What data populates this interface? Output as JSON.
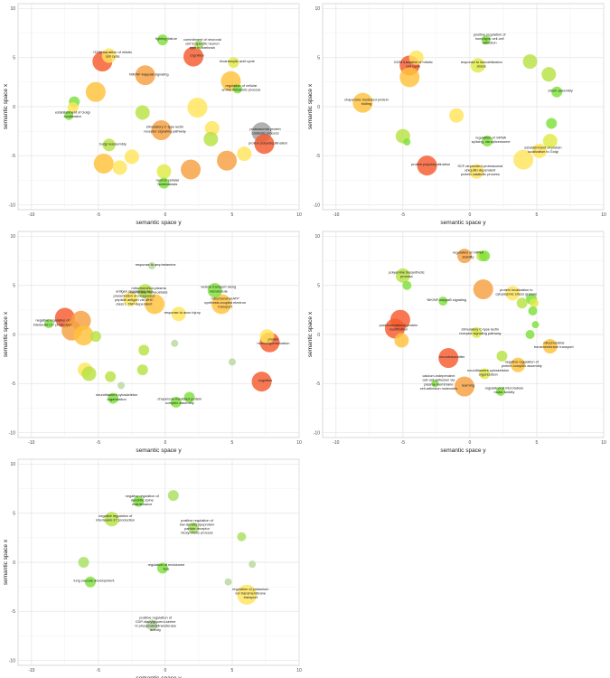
{
  "axes": {
    "xlabel": "semantic space y",
    "ylabel": "semantic space x",
    "xlim": [
      -11,
      10
    ],
    "ylim": [
      -10.5,
      10.5
    ],
    "xticks": [
      -10,
      -5,
      0,
      5,
      10
    ],
    "yticks": [
      -10,
      -5,
      0,
      5,
      10
    ],
    "grid": true
  },
  "chart_data": [
    {
      "type": "scatter",
      "title": "",
      "xlabel": "semantic space y",
      "ylabel": "semantic space x",
      "xlim": [
        -11,
        10
      ],
      "ylim": [
        -10.5,
        10.5
      ],
      "grid": true,
      "points": [
        {
          "x": -0.2,
          "y": 6.8,
          "size": 6,
          "color": "#7ee03a",
          "label": "fighting failure"
        },
        {
          "x": 2.5,
          "y": 6.3,
          "size": 5,
          "color": "#a8e060",
          "label": "commitment of neuronal cell to specific neuron type in forebrain"
        },
        {
          "x": 2.1,
          "y": 5.1,
          "size": 11,
          "color": "#f55a2d",
          "label": "cognition"
        },
        {
          "x": -4.2,
          "y": 5.2,
          "size": 8,
          "color": "#ffe45a",
          "label": "G2/M transition of mitotic cell cycle"
        },
        {
          "x": -4.7,
          "y": 4.6,
          "size": 11,
          "color": "#f55a2d",
          "label": ""
        },
        {
          "x": -1.5,
          "y": 3.2,
          "size": 11,
          "color": "#f7a040",
          "label": "NIK/NF-kappaB signaling"
        },
        {
          "x": 5.1,
          "y": 4.5,
          "size": 6,
          "color": "#e0ea46",
          "label": "tricarboxylic acid cycle"
        },
        {
          "x": 4.9,
          "y": 2.6,
          "size": 11,
          "color": "#ffc13a",
          "label": ""
        },
        {
          "x": 5.4,
          "y": 1.8,
          "size": 5,
          "color": "#7ee03a",
          "label": "regulation of cellular amine metabolic process"
        },
        {
          "x": -5.2,
          "y": 1.5,
          "size": 11,
          "color": "#ffc13a",
          "label": ""
        },
        {
          "x": -6.8,
          "y": 0.5,
          "size": 6,
          "color": "#7ee03a",
          "label": ""
        },
        {
          "x": -6.9,
          "y": -0.1,
          "size": 6,
          "color": "#ffe45a",
          "label": ""
        },
        {
          "x": -7.2,
          "y": -0.9,
          "size": 5,
          "color": "#7ee03a",
          "label": "establishment of Golgi localization"
        },
        {
          "x": -1.7,
          "y": -0.6,
          "size": 8,
          "color": "#b8e244",
          "label": ""
        },
        {
          "x": 2.4,
          "y": -0.1,
          "size": 11,
          "color": "#ffe45a",
          "label": ""
        },
        {
          "x": 7.2,
          "y": -2.6,
          "size": 11,
          "color": "#a0a0a0",
          "label": "proteasomal protein catabolic process"
        },
        {
          "x": 7.4,
          "y": -3.8,
          "size": 11,
          "color": "#f55a2d",
          "label": "protein polyubiquitination"
        },
        {
          "x": -0.3,
          "y": -2.4,
          "size": 11,
          "color": "#f7a040",
          "label": "stimulatory C-type lectin receptor signaling pathway"
        },
        {
          "x": 3.5,
          "y": -2.2,
          "size": 8,
          "color": "#ffe45a",
          "label": ""
        },
        {
          "x": 3.4,
          "y": -3.3,
          "size": 8,
          "color": "#b8e244",
          "label": ""
        },
        {
          "x": -4.2,
          "y": -3.9,
          "size": 7,
          "color": "#b8e244",
          "label": "Golgi reassembly"
        },
        {
          "x": -2.5,
          "y": -5.1,
          "size": 8,
          "color": "#ffe45a",
          "label": ""
        },
        {
          "x": -3.4,
          "y": -6.2,
          "size": 8,
          "color": "#ffe45a",
          "label": ""
        },
        {
          "x": -4.6,
          "y": -5.8,
          "size": 11,
          "color": "#ffc13a",
          "label": ""
        },
        {
          "x": -0.1,
          "y": -6.6,
          "size": 8,
          "color": "#e0ea46",
          "label": ""
        },
        {
          "x": 1.9,
          "y": -6.4,
          "size": 11,
          "color": "#f7a040",
          "label": ""
        },
        {
          "x": 4.6,
          "y": -5.5,
          "size": 11,
          "color": "#f7a040",
          "label": ""
        },
        {
          "x": 5.9,
          "y": -4.8,
          "size": 8,
          "color": "#ffe45a",
          "label": ""
        },
        {
          "x": -0.1,
          "y": -7.8,
          "size": 6,
          "color": "#7ee03a",
          "label": "neuron cellular homeostasis"
        }
      ]
    },
    {
      "type": "scatter",
      "title": "",
      "xlabel": "semantic space y",
      "ylabel": "semantic space x",
      "xlim": [
        -11,
        10
      ],
      "ylim": [
        -10.5,
        10.5
      ],
      "grid": true,
      "points": [
        {
          "x": 1.2,
          "y": 6.8,
          "size": 5,
          "color": "#7ee03a",
          "label": "positive regulation of homotypic cell-cell adhesion"
        },
        {
          "x": -4.0,
          "y": 5.0,
          "size": 8,
          "color": "#ffe45a",
          "label": ""
        },
        {
          "x": -4.5,
          "y": 4.2,
          "size": 11,
          "color": "#f55a2d",
          "label": "G2/M transition of mitotic cell cycle"
        },
        {
          "x": -4.5,
          "y": 3.0,
          "size": 11,
          "color": "#ffc13a",
          "label": ""
        },
        {
          "x": 0.6,
          "y": 4.2,
          "size": 8,
          "color": "#e0ea46",
          "label": "response to immobilization stress"
        },
        {
          "x": 4.5,
          "y": 4.6,
          "size": 8,
          "color": "#b8e244",
          "label": ""
        },
        {
          "x": 5.9,
          "y": 3.3,
          "size": 8,
          "color": "#b8e244",
          "label": ""
        },
        {
          "x": 6.5,
          "y": 1.5,
          "size": 6,
          "color": "#7ee03a",
          "label": "cilium assembly"
        },
        {
          "x": -8.0,
          "y": 0.4,
          "size": 11,
          "color": "#ffc13a",
          "label": "chaperone-mediated protein folding"
        },
        {
          "x": -1.0,
          "y": -0.9,
          "size": 8,
          "color": "#ffe45a",
          "label": ""
        },
        {
          "x": 6.1,
          "y": -1.7,
          "size": 6,
          "color": "#7ee03a",
          "label": ""
        },
        {
          "x": 6.0,
          "y": -3.5,
          "size": 8,
          "color": "#e0ea46",
          "label": ""
        },
        {
          "x": -5.0,
          "y": -3.0,
          "size": 8,
          "color": "#b8e244",
          "label": ""
        },
        {
          "x": -4.7,
          "y": -3.6,
          "size": 4,
          "color": "#7ee03a",
          "label": ""
        },
        {
          "x": 1.3,
          "y": -3.5,
          "size": 6,
          "color": "#7ee03a",
          "label": "regulation of mRNA splicing, via spliceosome"
        },
        {
          "x": 5.2,
          "y": -4.5,
          "size": 8,
          "color": "#ffe45a",
          "label": "establishment of protein localization to Golgi"
        },
        {
          "x": -3.2,
          "y": -6.0,
          "size": 11,
          "color": "#f55a2d",
          "label": "protein polyubiquitination"
        },
        {
          "x": 4.0,
          "y": -5.4,
          "size": 11,
          "color": "#ffe45a",
          "label": ""
        },
        {
          "x": 0.5,
          "y": -6.6,
          "size": 8,
          "color": "#ffe45a",
          "label": "SCF-dependent proteasomal ubiquitin-dependent protein catabolic process"
        }
      ]
    },
    {
      "type": "scatter",
      "title": "",
      "xlabel": "semantic space y",
      "ylabel": "semantic space x",
      "xlim": [
        -11,
        10
      ],
      "ylim": [
        -10.5,
        10.5
      ],
      "grid": true,
      "points": [
        {
          "x": -1.0,
          "y": 7.0,
          "size": 4,
          "color": "#b8d8a0",
          "label": "response to amphetamine"
        },
        {
          "x": -2.6,
          "y": 3.6,
          "size": 8,
          "color": "#ffe45a",
          "label": "antigen processing and presentation of exogenous peptide antigen via MHC class I, TAP-dependent"
        },
        {
          "x": -1.5,
          "y": 4.4,
          "size": 8,
          "color": "#b8e244",
          "label": "mitochondrion-plasma membrane homeostasis"
        },
        {
          "x": -0.8,
          "y": 3.1,
          "size": 11,
          "color": "#ffc13a",
          "label": ""
        },
        {
          "x": 3.7,
          "y": 4.5,
          "size": 8,
          "color": "#7ee03a",
          "label": "vesicle transport along microtubule"
        },
        {
          "x": 4.2,
          "y": 3.1,
          "size": 11,
          "color": "#ffc13a",
          "label": "mitochondrial ATP synthesis coupled electron transport"
        },
        {
          "x": 1.0,
          "y": 2.1,
          "size": 8,
          "color": "#ffe45a",
          "label": "response to axon injury"
        },
        {
          "x": -7.5,
          "y": 1.7,
          "size": 11,
          "color": "#f55a2d",
          "label": ""
        },
        {
          "x": -6.3,
          "y": 1.4,
          "size": 11,
          "color": "#f7a040",
          "label": ""
        },
        {
          "x": -7.0,
          "y": 0.4,
          "size": 11,
          "color": "#f7a040",
          "label": ""
        },
        {
          "x": -6.1,
          "y": -0.1,
          "size": 11,
          "color": "#ffc13a",
          "label": ""
        },
        {
          "x": -8.7,
          "y": 1.1,
          "size": 5,
          "color": "#7ee03a",
          "label": "negative regulation of interleukin-17 production"
        },
        {
          "x": -5.2,
          "y": -0.2,
          "size": 6,
          "color": "#b8e244",
          "label": ""
        },
        {
          "x": 7.6,
          "y": -0.2,
          "size": 8,
          "color": "#ffe45a",
          "label": ""
        },
        {
          "x": 7.8,
          "y": -0.8,
          "size": 11,
          "color": "#f55a2d",
          "label": "protein homooligomerization"
        },
        {
          "x": 0.7,
          "y": -0.9,
          "size": 4,
          "color": "#b8d8a0",
          "label": ""
        },
        {
          "x": -1.6,
          "y": -1.6,
          "size": 6,
          "color": "#b8e244",
          "label": ""
        },
        {
          "x": -6.0,
          "y": -3.6,
          "size": 8,
          "color": "#ffe45a",
          "label": ""
        },
        {
          "x": -5.7,
          "y": -4.0,
          "size": 8,
          "color": "#b8e244",
          "label": ""
        },
        {
          "x": -4.1,
          "y": -4.3,
          "size": 6,
          "color": "#b8e244",
          "label": ""
        },
        {
          "x": -1.7,
          "y": -3.6,
          "size": 6,
          "color": "#b8e244",
          "label": ""
        },
        {
          "x": -3.3,
          "y": -5.2,
          "size": 4,
          "color": "#b8d8a0",
          "label": ""
        },
        {
          "x": -3.9,
          "y": -6.5,
          "size": 6,
          "color": "#7ee03a",
          "label": "neurofilament cytoskeleton organization"
        },
        {
          "x": 1.8,
          "y": -6.4,
          "size": 6,
          "color": "#7ee03a",
          "label": ""
        },
        {
          "x": 0.8,
          "y": -6.9,
          "size": 6,
          "color": "#7ee03a",
          "label": "chaperone-mediated protein complex assembly"
        },
        {
          "x": 5.0,
          "y": -2.8,
          "size": 4,
          "color": "#b8d8a0",
          "label": ""
        },
        {
          "x": 7.2,
          "y": -4.8,
          "size": 11,
          "color": "#f55a2d",
          "label": "cognition"
        }
      ]
    },
    {
      "type": "scatter",
      "title": "",
      "xlabel": "semantic space y",
      "ylabel": "semantic space x",
      "xlim": [
        -11,
        10
      ],
      "ylim": [
        -10.5,
        10.5
      ],
      "grid": true,
      "points": [
        {
          "x": -0.4,
          "y": 8.0,
          "size": 8,
          "color": "#f7a040",
          "label": "regulation of mRNA stability"
        },
        {
          "x": 0.9,
          "y": 8.0,
          "size": 6,
          "color": "#b8e244",
          "label": ""
        },
        {
          "x": 1.1,
          "y": 8.0,
          "size": 6,
          "color": "#7ee03a",
          "label": ""
        },
        {
          "x": -5.0,
          "y": 6.0,
          "size": 8,
          "color": "#b8e244",
          "label": "polyamine biosynthetic process"
        },
        {
          "x": -4.7,
          "y": 5.0,
          "size": 5,
          "color": "#7ee03a",
          "label": ""
        },
        {
          "x": 1.0,
          "y": 4.6,
          "size": 11,
          "color": "#f7a040",
          "label": ""
        },
        {
          "x": 3.2,
          "y": 4.2,
          "size": 8,
          "color": "#ffe45a",
          "label": "protein localization to cytoplasmic stress granule"
        },
        {
          "x": -2.0,
          "y": 3.4,
          "size": 5,
          "color": "#7ee03a",
          "label": "NIK/NF-kappaB signaling"
        },
        {
          "x": 4.6,
          "y": 3.6,
          "size": 6,
          "color": "#7ee03a",
          "label": ""
        },
        {
          "x": 4.8,
          "y": 3.2,
          "size": 5,
          "color": "#e0ea46",
          "label": ""
        },
        {
          "x": 3.9,
          "y": 3.2,
          "size": 6,
          "color": "#b8e244",
          "label": ""
        },
        {
          "x": 4.7,
          "y": 2.4,
          "size": 5,
          "color": "#7ee03a",
          "label": ""
        },
        {
          "x": 4.9,
          "y": 1.0,
          "size": 4,
          "color": "#7ee03a",
          "label": ""
        },
        {
          "x": -5.2,
          "y": 1.5,
          "size": 11,
          "color": "#f55a2d",
          "label": ""
        },
        {
          "x": -5.6,
          "y": 0.6,
          "size": 11,
          "color": "#f55a2d",
          "label": "post-translational protein modification"
        },
        {
          "x": -5.1,
          "y": -0.6,
          "size": 8,
          "color": "#ffc13a",
          "label": ""
        },
        {
          "x": 0.5,
          "y": 0.2,
          "size": 6,
          "color": "#e0ea46",
          "label": "stimulatory C-type lectin receptor signaling pathway"
        },
        {
          "x": 4.5,
          "y": 0.0,
          "size": 5,
          "color": "#7ee03a",
          "label": ""
        },
        {
          "x": 6.0,
          "y": -1.2,
          "size": 8,
          "color": "#ffc13a",
          "label": "mitochondrial transmembrane transport"
        },
        {
          "x": -1.6,
          "y": -2.4,
          "size": 11,
          "color": "#f55a2d",
          "label": "neurotransmitter"
        },
        {
          "x": 2.4,
          "y": -2.2,
          "size": 6,
          "color": "#b8e244",
          "label": ""
        },
        {
          "x": 3.6,
          "y": -3.1,
          "size": 8,
          "color": "#ffc13a",
          "label": "negative regulation of protein complex assembly"
        },
        {
          "x": 1.1,
          "y": -4.0,
          "size": 6,
          "color": "#e0ea46",
          "label": "neurofilament cytoskeleton organization"
        },
        {
          "x": -0.4,
          "y": -5.3,
          "size": 11,
          "color": "#f7a040",
          "label": "learning"
        },
        {
          "x": -2.6,
          "y": -5.0,
          "size": 4,
          "color": "#7ee03a",
          "label": "calcium-independent cell-cell adhesion via plasma membrane cell-adhesion molecules"
        },
        {
          "x": 2.3,
          "y": -5.8,
          "size": 5,
          "color": "#7ee03a",
          "label": "regulation of microtubule motor activity"
        }
      ]
    },
    {
      "type": "scatter",
      "title": "",
      "xlabel": "semantic space y",
      "ylabel": "semantic space x",
      "xlim": [
        -11,
        10
      ],
      "ylim": [
        -10.5,
        10.5
      ],
      "grid": true,
      "points": [
        {
          "x": 0.6,
          "y": 6.8,
          "size": 6,
          "color": "#a8e060",
          "label": ""
        },
        {
          "x": -2.0,
          "y": 6.2,
          "size": 6,
          "color": "#7ee03a",
          "label": "negative regulation of dendritic spine maintenance"
        },
        {
          "x": -4.0,
          "y": 4.4,
          "size": 8,
          "color": "#b8e244",
          "label": "negative regulation of interleukin-17 production"
        },
        {
          "x": 2.1,
          "y": 3.5,
          "size": 6,
          "color": "#a8e060",
          "label": "positive regulation of low-density lipoprotein particle receptor biosynthetic process"
        },
        {
          "x": 5.7,
          "y": 2.6,
          "size": 5,
          "color": "#a8e060",
          "label": ""
        },
        {
          "x": -6.1,
          "y": 0.0,
          "size": 6,
          "color": "#a8e060",
          "label": ""
        },
        {
          "x": -0.2,
          "y": -0.6,
          "size": 6,
          "color": "#7ee03a",
          "label": "regulation of endosome size"
        },
        {
          "x": 6.5,
          "y": -0.2,
          "size": 4,
          "color": "#b8d8a0",
          "label": ""
        },
        {
          "x": -5.6,
          "y": -2.0,
          "size": 6,
          "color": "#7ee03a",
          "label": "lung saccule development"
        },
        {
          "x": 4.7,
          "y": -2.0,
          "size": 4,
          "color": "#b8d8a0",
          "label": ""
        },
        {
          "x": 6.1,
          "y": -3.3,
          "size": 11,
          "color": "#ffe45a",
          "label": "regulation of potassium ion transmembrane transport"
        },
        {
          "x": -1.0,
          "y": -6.4,
          "size": 6,
          "color": "#b8d8a0",
          "label": "positive regulation of CDP-diacylglycerol-serine O-phosphatidyltransferase activity"
        }
      ]
    }
  ]
}
